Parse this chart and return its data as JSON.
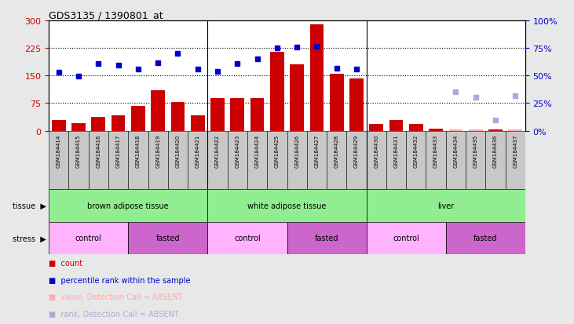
{
  "title": "GDS3135 / 1390801_at",
  "samples": [
    "GSM184414",
    "GSM184415",
    "GSM184416",
    "GSM184417",
    "GSM184418",
    "GSM184419",
    "GSM184420",
    "GSM184421",
    "GSM184422",
    "GSM184423",
    "GSM184424",
    "GSM184425",
    "GSM184426",
    "GSM184427",
    "GSM184428",
    "GSM184429",
    "GSM184430",
    "GSM184431",
    "GSM184432",
    "GSM184433",
    "GSM184434",
    "GSM184435",
    "GSM184436",
    "GSM184437"
  ],
  "bar_values": [
    30,
    20,
    38,
    42,
    68,
    110,
    78,
    42,
    88,
    88,
    88,
    215,
    180,
    290,
    155,
    143,
    18,
    30,
    18,
    5,
    3,
    3,
    3,
    3
  ],
  "bar_absent": [
    false,
    false,
    false,
    false,
    false,
    false,
    false,
    false,
    false,
    false,
    false,
    false,
    false,
    false,
    false,
    false,
    false,
    false,
    false,
    false,
    true,
    true,
    false,
    true
  ],
  "dot_values": [
    160,
    148,
    183,
    178,
    168,
    185,
    210,
    168,
    162,
    182,
    195,
    225,
    228,
    230,
    170,
    168,
    null,
    null,
    null,
    null,
    null,
    null,
    null,
    null
  ],
  "rank_absent_values": [
    null,
    null,
    null,
    null,
    null,
    null,
    null,
    null,
    null,
    null,
    null,
    null,
    null,
    null,
    null,
    null,
    null,
    null,
    null,
    null,
    35,
    30,
    10,
    32
  ],
  "ylim_left": [
    0,
    300
  ],
  "ylim_right": [
    0,
    100
  ],
  "yticks_left": [
    0,
    75,
    150,
    225,
    300
  ],
  "yticks_right_vals": [
    0,
    25,
    50,
    75,
    100
  ],
  "yticks_right_labels": [
    "0%",
    "25%",
    "50%",
    "75%",
    "100%"
  ],
  "bar_color": "#CC0000",
  "bar_absent_color": "#FFAAAA",
  "dot_color": "#0000CC",
  "dot_absent_color": "#AAAADD",
  "bg_color": "#E8E8E8",
  "plot_bg": "#FFFFFF",
  "xtick_bg": "#C8C8C8",
  "tissue_color": "#90EE90",
  "stress_control_color": "#FFB3FF",
  "stress_fasted_color": "#CC66CC",
  "left_axis_color": "#CC0000",
  "right_axis_color": "#0000CC",
  "tissue_groups": [
    {
      "label": "brown adipose tissue",
      "start": 0,
      "end": 8
    },
    {
      "label": "white adipose tissue",
      "start": 8,
      "end": 16
    },
    {
      "label": "liver",
      "start": 16,
      "end": 24
    }
  ],
  "stress_groups": [
    {
      "label": "control",
      "start": 0,
      "end": 4,
      "type": "control"
    },
    {
      "label": "fasted",
      "start": 4,
      "end": 8,
      "type": "fasted"
    },
    {
      "label": "control",
      "start": 8,
      "end": 12,
      "type": "control"
    },
    {
      "label": "fasted",
      "start": 12,
      "end": 16,
      "type": "fasted"
    },
    {
      "label": "control",
      "start": 16,
      "end": 20,
      "type": "control"
    },
    {
      "label": "fasted",
      "start": 20,
      "end": 24,
      "type": "fasted"
    }
  ],
  "legend_items": [
    {
      "color": "#CC0000",
      "label": "count"
    },
    {
      "color": "#0000CC",
      "label": "percentile rank within the sample"
    },
    {
      "color": "#FFAAAA",
      "label": "value, Detection Call = ABSENT"
    },
    {
      "color": "#AAAADD",
      "label": "rank, Detection Call = ABSENT"
    }
  ]
}
